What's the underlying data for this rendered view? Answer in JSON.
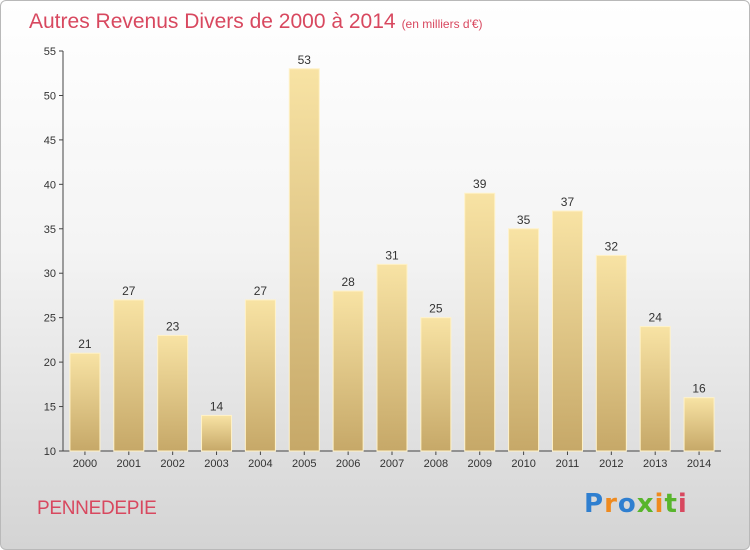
{
  "header": {
    "title": "Autres Revenus Divers de 2000 à 2014",
    "subtitle": "(en milliers d'€)"
  },
  "footer": {
    "commune": "PENNEDEPIE",
    "brand": "Proxiti"
  },
  "colors": {
    "title": "#d8485f",
    "bar_light": "#f6e0a0",
    "bar_dark": "#c8ab6a",
    "brand_blue": "#2f7fd0",
    "brand_orange": "#ef8a1e",
    "brand_green": "#58b52c"
  },
  "chart_data": {
    "type": "bar",
    "categories": [
      "2000",
      "2001",
      "2002",
      "2003",
      "2004",
      "2005",
      "2006",
      "2007",
      "2008",
      "2009",
      "2010",
      "2011",
      "2012",
      "2013",
      "2014"
    ],
    "values": [
      21,
      27,
      23,
      14,
      27,
      53,
      28,
      31,
      25,
      39,
      35,
      37,
      32,
      24,
      16
    ],
    "title": "Autres Revenus Divers de 2000 à 2014",
    "xlabel": "",
    "ylabel": "",
    "ylim": [
      10,
      55
    ],
    "yticks": [
      10,
      15,
      20,
      25,
      30,
      35,
      40,
      45,
      50,
      55
    ],
    "grid": false,
    "legend": "none"
  }
}
